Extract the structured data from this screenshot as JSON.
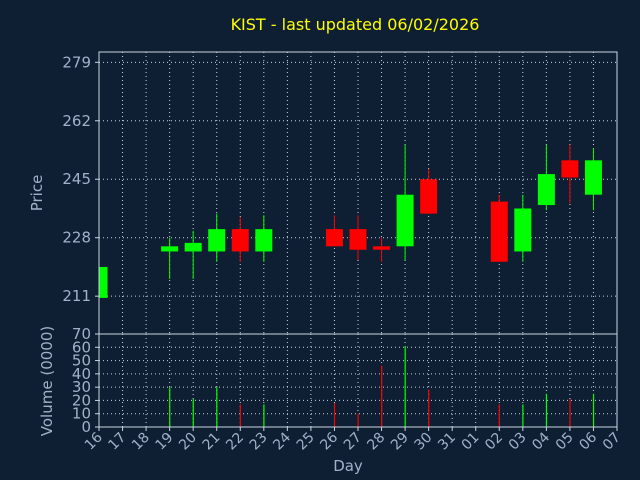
{
  "title": "KIST - last updated 06/02/2026",
  "colors": {
    "up": "#00ff00",
    "down": "#ff0000",
    "background": "#0e1f33",
    "text": "#9fb3c8",
    "title": "#ffff00"
  },
  "chart_data": [
    {
      "type": "candlestick",
      "ylabel": "Price",
      "ylim": [
        200,
        282
      ],
      "yticks": [
        211,
        228,
        245,
        262,
        279
      ],
      "grid": true,
      "days": [
        "16",
        "17",
        "18",
        "19",
        "20",
        "21",
        "22",
        "23",
        "24",
        "25",
        "26",
        "27",
        "28",
        "29",
        "30",
        "31",
        "01",
        "02",
        "03",
        "04",
        "05",
        "06",
        "07"
      ],
      "candles": [
        {
          "day": "16",
          "open": 210.5,
          "close": 219.5,
          "high": 219.5,
          "low": 210.5
        },
        {
          "day": "19",
          "open": 224.0,
          "close": 225.5,
          "high": 228.0,
          "low": 216.0
        },
        {
          "day": "20",
          "open": 224.0,
          "close": 226.5,
          "high": 230.0,
          "low": 216.0
        },
        {
          "day": "21",
          "open": 224.0,
          "close": 230.5,
          "high": 235.0,
          "low": 221.0
        },
        {
          "day": "22",
          "open": 230.5,
          "close": 224.0,
          "high": 234.0,
          "low": 221.0
        },
        {
          "day": "23",
          "open": 224.0,
          "close": 230.5,
          "high": 234.5,
          "low": 221.0
        },
        {
          "day": "26",
          "open": 230.5,
          "close": 225.5,
          "high": 234.5,
          "low": 225.5
        },
        {
          "day": "27",
          "open": 230.5,
          "close": 224.5,
          "high": 234.5,
          "low": 221.5
        },
        {
          "day": "28",
          "open": 225.5,
          "close": 224.5,
          "high": 228.0,
          "low": 221.0
        },
        {
          "day": "29",
          "open": 225.5,
          "close": 240.5,
          "high": 255.0,
          "low": 221.5
        },
        {
          "day": "30",
          "open": 245.0,
          "close": 235.0,
          "high": 248.0,
          "low": 235.0
        },
        {
          "day": "02",
          "open": 238.5,
          "close": 221.0,
          "high": 240.5,
          "low": 221.0
        },
        {
          "day": "03",
          "open": 224.0,
          "close": 236.5,
          "high": 240.5,
          "low": 221.0
        },
        {
          "day": "04",
          "open": 237.5,
          "close": 246.5,
          "high": 255.0,
          "low": 236.0
        },
        {
          "day": "05",
          "open": 250.5,
          "close": 245.5,
          "high": 255.0,
          "low": 238.0
        },
        {
          "day": "06",
          "open": 240.5,
          "close": 250.5,
          "high": 254.0,
          "low": 236.0
        }
      ]
    },
    {
      "type": "bar",
      "xlabel": "Day",
      "ylabel": "Volume (0000)",
      "ylim": [
        0,
        70
      ],
      "yticks": [
        0,
        10,
        20,
        30,
        40,
        50,
        60,
        70
      ],
      "grid": true,
      "volumes": [
        {
          "day": "16",
          "value": 0
        },
        {
          "day": "19",
          "value": 30,
          "color": "up"
        },
        {
          "day": "20",
          "value": 21,
          "color": "up"
        },
        {
          "day": "21",
          "value": 30,
          "color": "up"
        },
        {
          "day": "22",
          "value": 17,
          "color": "down"
        },
        {
          "day": "23",
          "value": 17,
          "color": "up"
        },
        {
          "day": "26",
          "value": 18,
          "color": "down"
        },
        {
          "day": "27",
          "value": 10,
          "color": "down"
        },
        {
          "day": "28",
          "value": 46,
          "color": "down"
        },
        {
          "day": "29",
          "value": 61,
          "color": "up"
        },
        {
          "day": "30",
          "value": 28,
          "color": "down"
        },
        {
          "day": "02",
          "value": 17,
          "color": "down"
        },
        {
          "day": "03",
          "value": 17,
          "color": "up"
        },
        {
          "day": "04",
          "value": 25,
          "color": "up"
        },
        {
          "day": "05",
          "value": 21,
          "color": "down"
        },
        {
          "day": "06",
          "value": 25,
          "color": "up"
        }
      ]
    }
  ]
}
